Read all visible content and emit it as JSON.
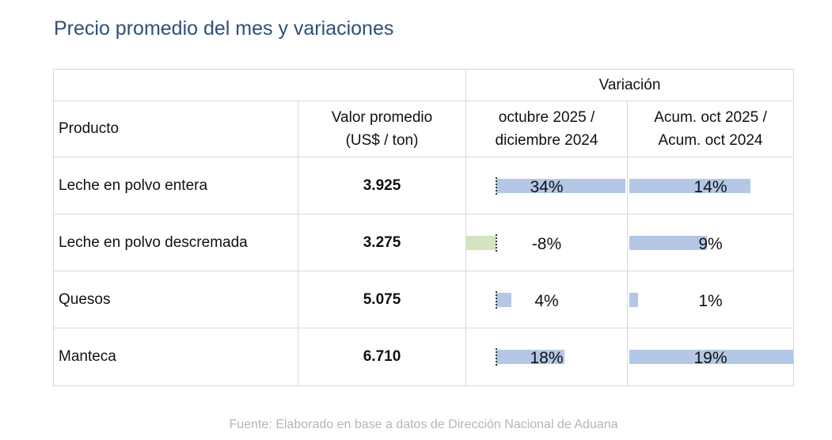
{
  "title": "Precio promedio del mes y variaciones",
  "header": {
    "variacion": "Variación",
    "producto": "Producto",
    "valor_line1": "Valor promedio",
    "valor_line2": "(US$ / ton)",
    "mensual_line1": "octubre 2025 /",
    "mensual_line2": "diciembre 2024",
    "acum_line1": "Acum. oct 2025 /",
    "acum_line2": "Acum. oct 2024"
  },
  "rows": [
    {
      "producto": "Leche en polvo entera",
      "valor": "3.925",
      "var_mensual": "34%",
      "var_mensual_value": 34,
      "var_acum": "14%",
      "var_acum_value": 14
    },
    {
      "producto": "Leche en polvo descremada",
      "valor": "3.275",
      "var_mensual": "-8%",
      "var_mensual_value": -8,
      "var_acum": "9%",
      "var_acum_value": 9
    },
    {
      "producto": "Quesos",
      "valor": "5.075",
      "var_mensual": "4%",
      "var_mensual_value": 4,
      "var_acum": "1%",
      "var_acum_value": 1
    },
    {
      "producto": "Manteca",
      "valor": "6.710",
      "var_mensual": "18%",
      "var_mensual_value": 18,
      "var_acum": "19%",
      "var_acum_value": 19
    }
  ],
  "colors": {
    "title": "#2f4f7a",
    "value": "#7dc242",
    "bar_positive": "#b4c7e7",
    "bar_negative": "#d4e4c0"
  },
  "source": "Fuente: Elaborado en base a datos de Dirección Nacional de Aduana"
}
